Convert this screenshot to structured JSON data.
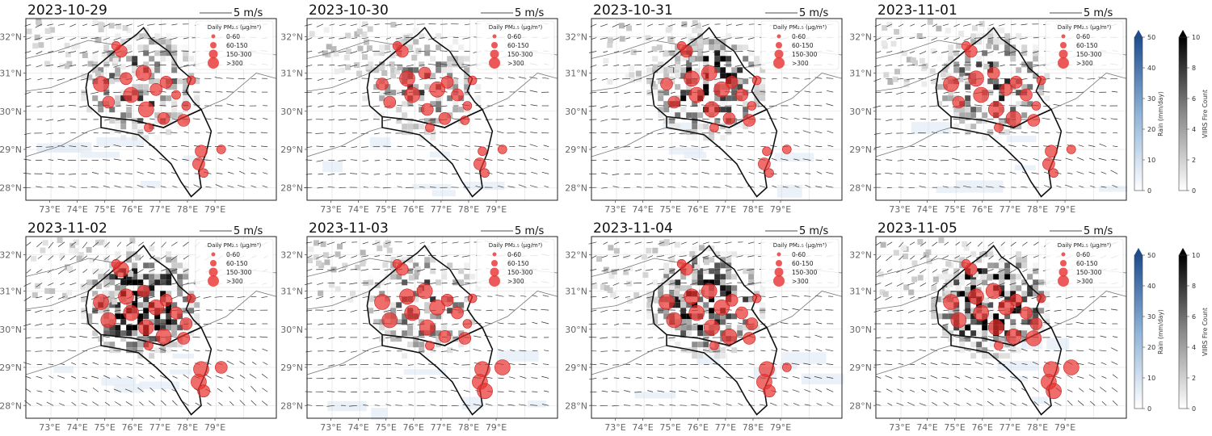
{
  "panels": [
    {
      "date": "2023-10-29"
    },
    {
      "date": "2023-10-30"
    },
    {
      "date": "2023-10-31"
    },
    {
      "date": "2023-11-01"
    },
    {
      "date": "2023-11-02"
    },
    {
      "date": "2023-11-03"
    },
    {
      "date": "2023-11-04"
    },
    {
      "date": "2023-11-05"
    }
  ],
  "lat_labels": [
    "32°N",
    "31°N",
    "30°N",
    "29°N",
    "28°N"
  ],
  "lon_labels": [
    "73°E",
    "74°E",
    "75°E",
    "76°E",
    "77°E",
    "78°E",
    "79°E"
  ],
  "wind_scale_label": "5 m/s",
  "legend": {
    "title": "Daily PM₂.₅ (μg/m³)",
    "classes": [
      "0-60",
      "60-150",
      "150-300",
      ">300"
    ],
    "marker_color": "#e8302e"
  },
  "colorbars": {
    "rain": {
      "label": "Rain (mm/day)",
      "ticks": [
        "50",
        "40",
        "30",
        "20",
        "10",
        "0"
      ],
      "colors": [
        "#ffffff",
        "#1f4e8f"
      ]
    },
    "fire": {
      "label": "VIIRS Fire Count",
      "ticks": [
        "10",
        "8",
        "6",
        "4",
        "2",
        "0"
      ],
      "colors": [
        "#ffffff",
        "#000000"
      ]
    }
  }
}
